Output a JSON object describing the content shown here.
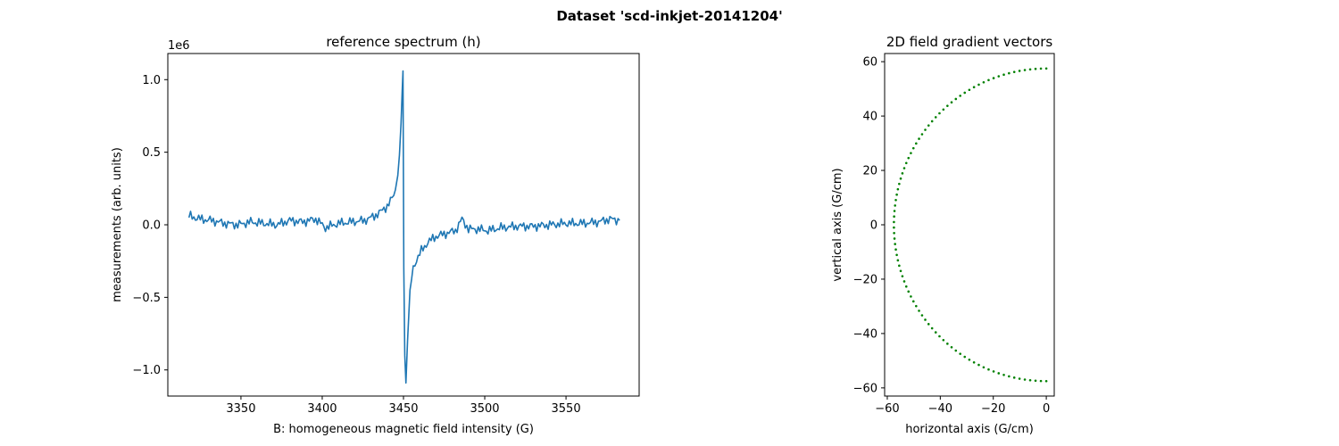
{
  "figure": {
    "suptitle": "Dataset 'scd-inkjet-20141204'"
  },
  "chart_data": [
    {
      "type": "line",
      "title": "reference spectrum (h)",
      "xlabel": "B: homogeneous magnetic field intensity (G)",
      "ylabel": "measurements (arb. units)",
      "y_offset_label": "1e6",
      "xlim": [
        3305,
        3595
      ],
      "ylim": [
        -1.18,
        1.18
      ],
      "y_scale_factor": 1000000,
      "xticks": [
        3350,
        3400,
        3450,
        3500,
        3550
      ],
      "xtick_labels": [
        "3350",
        "3400",
        "3450",
        "3500",
        "3550"
      ],
      "yticks": [
        -1.0,
        -0.5,
        0.0,
        0.5,
        1.0
      ],
      "ytick_labels": [
        "−1.0",
        "−0.5",
        "0.0",
        "0.5",
        "1.0"
      ],
      "grid": false,
      "series": [
        {
          "color": "#1f77b4",
          "x": [
            3318,
            3325,
            3332,
            3340,
            3348,
            3356,
            3364,
            3372,
            3380,
            3388,
            3396,
            3402,
            3410,
            3418,
            3426,
            3432,
            3436,
            3440,
            3443,
            3445,
            3446.5,
            3447.5,
            3448.5,
            3449.2,
            3449.7,
            3450.2,
            3450.8,
            3451.5,
            3452.5,
            3454,
            3456,
            3458,
            3461,
            3465,
            3470,
            3476,
            3482,
            3486,
            3490,
            3496,
            3502,
            3510,
            3520,
            3530,
            3540,
            3550,
            3560,
            3570,
            3577,
            3583
          ],
          "y": [
            0.06,
            0.04,
            0.03,
            0.01,
            0.0,
            0.02,
            0.01,
            0.0,
            0.03,
            0.02,
            0.04,
            -0.02,
            0.01,
            0.02,
            0.03,
            0.06,
            0.09,
            0.13,
            0.18,
            0.24,
            0.34,
            0.48,
            0.7,
            0.92,
            1.06,
            -0.3,
            -0.9,
            -1.09,
            -0.8,
            -0.45,
            -0.3,
            -0.24,
            -0.18,
            -0.12,
            -0.08,
            -0.06,
            -0.04,
            0.04,
            -0.03,
            -0.03,
            -0.04,
            -0.02,
            -0.01,
            -0.01,
            0.0,
            0.01,
            0.01,
            0.02,
            0.04,
            0.03
          ]
        }
      ]
    },
    {
      "type": "scatter",
      "title": "2D field gradient vectors",
      "xlabel": "horizontal axis (G/cm)",
      "ylabel": "vertical axis (G/cm)",
      "xlim": [
        -61,
        3
      ],
      "ylim": [
        -63,
        63
      ],
      "xticks": [
        -60,
        -40,
        -20,
        0
      ],
      "xtick_labels": [
        "−60",
        "−40",
        "−20",
        "0"
      ],
      "yticks": [
        -60,
        -40,
        -20,
        0,
        20,
        40,
        60
      ],
      "ytick_labels": [
        "−60",
        "−40",
        "−20",
        "0",
        "20",
        "40",
        "60"
      ],
      "grid": false,
      "marker_color": "#008000",
      "points_polar": {
        "radius": 57.5,
        "start_angle_deg": 90,
        "end_angle_deg": 270,
        "count": 90
      }
    }
  ]
}
